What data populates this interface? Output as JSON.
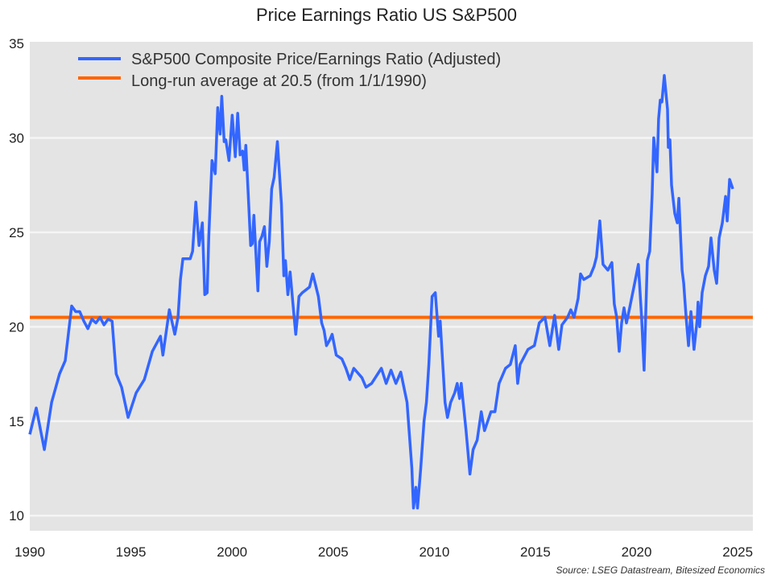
{
  "chart_data": {
    "type": "line",
    "title": "Price Earnings Ratio US S&P500",
    "xlabel": "",
    "ylabel": "",
    "xlim": [
      1990,
      2025.75
    ],
    "ylim": [
      9.2,
      35
    ],
    "x_ticks": [
      1990,
      1995,
      2000,
      2005,
      2010,
      2015,
      2020,
      2025
    ],
    "y_ticks": [
      10,
      15,
      20,
      25,
      30,
      35
    ],
    "grid": "horizontal",
    "legend_position": "top-left",
    "source": "Source: LSEG Datastream, Bitesized Economics",
    "colors": {
      "background": "#e4e4e4",
      "grid": "#f5f5f5",
      "series": "#3366ff",
      "average": "#ff6600"
    },
    "series": [
      {
        "name": "S&P500 Composite Price/Earnings Ratio (Adjusted)",
        "color": "#3366ff",
        "points": [
          [
            1990.0,
            14.3
          ],
          [
            1990.32,
            15.7
          ],
          [
            1990.72,
            13.5
          ],
          [
            1991.08,
            16.0
          ],
          [
            1991.47,
            17.5
          ],
          [
            1991.75,
            18.2
          ],
          [
            1992.07,
            21.1
          ],
          [
            1992.27,
            20.8
          ],
          [
            1992.47,
            20.8
          ],
          [
            1992.67,
            20.3
          ],
          [
            1992.87,
            19.9
          ],
          [
            1993.07,
            20.4
          ],
          [
            1993.27,
            20.2
          ],
          [
            1993.47,
            20.5
          ],
          [
            1993.67,
            20.1
          ],
          [
            1993.87,
            20.4
          ],
          [
            1994.07,
            20.3
          ],
          [
            1994.27,
            17.5
          ],
          [
            1994.54,
            16.8
          ],
          [
            1994.86,
            15.2
          ],
          [
            1995.26,
            16.5
          ],
          [
            1995.66,
            17.2
          ],
          [
            1996.06,
            18.7
          ],
          [
            1996.46,
            19.5
          ],
          [
            1996.58,
            18.5
          ],
          [
            1996.9,
            20.9
          ],
          [
            1997.17,
            19.6
          ],
          [
            1997.33,
            20.5
          ],
          [
            1997.45,
            22.5
          ],
          [
            1997.57,
            23.6
          ],
          [
            1997.93,
            23.6
          ],
          [
            1998.05,
            24.0
          ],
          [
            1998.21,
            26.6
          ],
          [
            1998.37,
            24.3
          ],
          [
            1998.53,
            25.5
          ],
          [
            1998.65,
            21.7
          ],
          [
            1998.77,
            21.8
          ],
          [
            1998.85,
            24.8
          ],
          [
            1999.01,
            28.8
          ],
          [
            1999.17,
            28.1
          ],
          [
            1999.29,
            31.6
          ],
          [
            1999.41,
            30.2
          ],
          [
            1999.49,
            32.2
          ],
          [
            1999.61,
            29.8
          ],
          [
            1999.69,
            29.9
          ],
          [
            1999.85,
            28.8
          ],
          [
            2000.01,
            31.2
          ],
          [
            2000.16,
            29.0
          ],
          [
            2000.28,
            31.3
          ],
          [
            2000.4,
            29.1
          ],
          [
            2000.52,
            29.3
          ],
          [
            2000.6,
            28.3
          ],
          [
            2000.68,
            29.6
          ],
          [
            2000.8,
            27.0
          ],
          [
            2000.92,
            24.3
          ],
          [
            2001.0,
            24.4
          ],
          [
            2001.08,
            25.9
          ],
          [
            2001.28,
            21.9
          ],
          [
            2001.36,
            24.5
          ],
          [
            2001.48,
            24.8
          ],
          [
            2001.6,
            25.3
          ],
          [
            2001.72,
            23.2
          ],
          [
            2001.84,
            24.5
          ],
          [
            2001.96,
            27.3
          ],
          [
            2002.08,
            27.9
          ],
          [
            2002.24,
            29.8
          ],
          [
            2002.44,
            26.5
          ],
          [
            2002.56,
            22.7
          ],
          [
            2002.64,
            23.5
          ],
          [
            2002.76,
            21.7
          ],
          [
            2002.87,
            22.9
          ],
          [
            2003.07,
            20.5
          ],
          [
            2003.15,
            19.6
          ],
          [
            2003.23,
            20.5
          ],
          [
            2003.31,
            21.6
          ],
          [
            2003.47,
            21.8
          ],
          [
            2003.83,
            22.1
          ],
          [
            2003.99,
            22.8
          ],
          [
            2004.11,
            22.3
          ],
          [
            2004.27,
            21.6
          ],
          [
            2004.43,
            20.2
          ],
          [
            2004.55,
            19.8
          ],
          [
            2004.67,
            19.0
          ],
          [
            2004.83,
            19.3
          ],
          [
            2004.95,
            19.6
          ],
          [
            2005.15,
            18.5
          ],
          [
            2005.43,
            18.3
          ],
          [
            2005.63,
            17.8
          ],
          [
            2005.82,
            17.2
          ],
          [
            2006.02,
            17.8
          ],
          [
            2006.42,
            17.3
          ],
          [
            2006.62,
            16.8
          ],
          [
            2006.9,
            17.0
          ],
          [
            2007.38,
            17.8
          ],
          [
            2007.62,
            17.0
          ],
          [
            2007.86,
            17.7
          ],
          [
            2008.1,
            17.0
          ],
          [
            2008.34,
            17.6
          ],
          [
            2008.65,
            16.0
          ],
          [
            2008.89,
            12.5
          ],
          [
            2008.97,
            10.4
          ],
          [
            2009.09,
            11.5
          ],
          [
            2009.17,
            10.4
          ],
          [
            2009.33,
            12.5
          ],
          [
            2009.49,
            15.0
          ],
          [
            2009.61,
            16.0
          ],
          [
            2009.73,
            18.0
          ],
          [
            2009.89,
            21.6
          ],
          [
            2010.05,
            21.8
          ],
          [
            2010.21,
            19.5
          ],
          [
            2010.29,
            20.3
          ],
          [
            2010.53,
            16.0
          ],
          [
            2010.65,
            15.2
          ],
          [
            2010.81,
            16.0
          ],
          [
            2011.01,
            16.5
          ],
          [
            2011.13,
            17.0
          ],
          [
            2011.25,
            16.2
          ],
          [
            2011.33,
            17.0
          ],
          [
            2011.57,
            14.5
          ],
          [
            2011.76,
            12.2
          ],
          [
            2011.92,
            13.5
          ],
          [
            2012.12,
            14.0
          ],
          [
            2012.32,
            15.5
          ],
          [
            2012.48,
            14.5
          ],
          [
            2012.64,
            15.0
          ],
          [
            2012.8,
            15.5
          ],
          [
            2013.0,
            15.5
          ],
          [
            2013.2,
            17.0
          ],
          [
            2013.52,
            17.8
          ],
          [
            2013.76,
            18.0
          ],
          [
            2014.0,
            19.0
          ],
          [
            2014.12,
            17.0
          ],
          [
            2014.24,
            18.0
          ],
          [
            2014.63,
            18.8
          ],
          [
            2014.95,
            19.0
          ],
          [
            2015.19,
            20.2
          ],
          [
            2015.47,
            20.5
          ],
          [
            2015.71,
            19.0
          ],
          [
            2015.95,
            20.6
          ],
          [
            2016.15,
            18.8
          ],
          [
            2016.31,
            20.1
          ],
          [
            2016.59,
            20.5
          ],
          [
            2016.75,
            20.9
          ],
          [
            2016.91,
            20.5
          ],
          [
            2017.11,
            21.5
          ],
          [
            2017.23,
            22.8
          ],
          [
            2017.39,
            22.5
          ],
          [
            2017.71,
            22.7
          ],
          [
            2017.9,
            23.2
          ],
          [
            2018.02,
            23.7
          ],
          [
            2018.18,
            25.6
          ],
          [
            2018.34,
            23.3
          ],
          [
            2018.58,
            23.0
          ],
          [
            2018.78,
            23.4
          ],
          [
            2018.9,
            21.2
          ],
          [
            2019.02,
            20.5
          ],
          [
            2019.14,
            18.7
          ],
          [
            2019.26,
            20.2
          ],
          [
            2019.38,
            21.0
          ],
          [
            2019.5,
            20.2
          ],
          [
            2019.66,
            21.0
          ],
          [
            2019.94,
            22.5
          ],
          [
            2020.09,
            23.3
          ],
          [
            2020.25,
            20.5
          ],
          [
            2020.37,
            17.7
          ],
          [
            2020.53,
            23.5
          ],
          [
            2020.65,
            24.0
          ],
          [
            2020.77,
            27.0
          ],
          [
            2020.85,
            30.0
          ],
          [
            2021.01,
            28.2
          ],
          [
            2021.09,
            31.0
          ],
          [
            2021.17,
            32.0
          ],
          [
            2021.25,
            31.9
          ],
          [
            2021.37,
            33.3
          ],
          [
            2021.53,
            31.5
          ],
          [
            2021.57,
            29.5
          ],
          [
            2021.65,
            29.9
          ],
          [
            2021.73,
            27.5
          ],
          [
            2021.89,
            26.0
          ],
          [
            2022.01,
            25.5
          ],
          [
            2022.09,
            26.8
          ],
          [
            2022.25,
            23.0
          ],
          [
            2022.33,
            22.3
          ],
          [
            2022.45,
            20.5
          ],
          [
            2022.57,
            19.0
          ],
          [
            2022.69,
            20.8
          ],
          [
            2022.84,
            18.8
          ],
          [
            2023.0,
            20.4
          ],
          [
            2023.04,
            21.3
          ],
          [
            2023.12,
            20.0
          ],
          [
            2023.24,
            21.8
          ],
          [
            2023.4,
            22.7
          ],
          [
            2023.56,
            23.2
          ],
          [
            2023.68,
            24.7
          ],
          [
            2023.84,
            23.0
          ],
          [
            2023.96,
            22.3
          ],
          [
            2024.08,
            24.7
          ],
          [
            2024.24,
            25.5
          ],
          [
            2024.4,
            26.9
          ],
          [
            2024.48,
            25.6
          ],
          [
            2024.6,
            27.8
          ],
          [
            2024.76,
            27.3
          ]
        ]
      },
      {
        "name": "Long-run average at 20.5 (from 1/1/1990)",
        "color": "#ff6600",
        "value": 20.5
      }
    ]
  }
}
